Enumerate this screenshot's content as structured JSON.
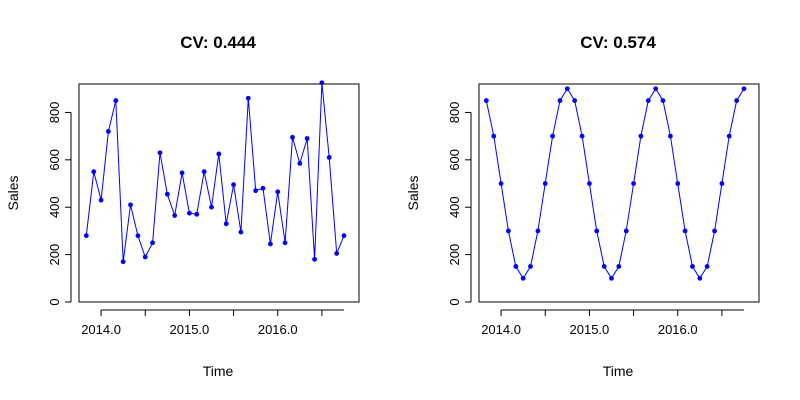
{
  "chart_data": [
    {
      "type": "line",
      "title": "CV: 0.444",
      "xlabel": "Time",
      "ylabel": "Sales",
      "xlim": [
        2013.75,
        2016.92
      ],
      "ylim": [
        0,
        920
      ],
      "xticks": [
        2014.0,
        2015.0,
        2016.0
      ],
      "xtick_labels": [
        "2014.0",
        "2015.0",
        "2016.0"
      ],
      "yticks": [
        0,
        200,
        400,
        600,
        800
      ],
      "ytick_labels": [
        "0",
        "200",
        "400",
        "600",
        "800"
      ],
      "grid": false,
      "color": "#0000ff",
      "series": [
        {
          "x": [
            2013.833,
            2013.917,
            2014.0,
            2014.083,
            2014.167,
            2014.25,
            2014.333,
            2014.417,
            2014.5,
            2014.583,
            2014.667,
            2014.75,
            2014.833,
            2014.917,
            2015.0,
            2015.083,
            2015.167,
            2015.25,
            2015.333,
            2015.417,
            2015.5,
            2015.583,
            2015.667,
            2015.75,
            2015.833,
            2015.917,
            2016.0,
            2016.083,
            2016.167,
            2016.25,
            2016.333,
            2016.417,
            2016.5,
            2016.583,
            2016.667,
            2016.75
          ],
          "values": [
            280,
            550,
            430,
            720,
            850,
            170,
            410,
            280,
            190,
            250,
            630,
            455,
            365,
            545,
            375,
            370,
            550,
            400,
            625,
            330,
            495,
            295,
            860,
            470,
            480,
            245,
            465,
            250,
            695,
            585,
            690,
            180,
            925,
            610,
            205,
            280
          ]
        }
      ]
    },
    {
      "type": "line",
      "title": "CV: 0.574",
      "xlabel": "Time",
      "ylabel": "Sales",
      "xlim": [
        2013.75,
        2016.92
      ],
      "ylim": [
        0,
        920
      ],
      "xticks": [
        2014.0,
        2015.0,
        2016.0
      ],
      "xtick_labels": [
        "2014.0",
        "2015.0",
        "2016.0"
      ],
      "yticks": [
        0,
        200,
        400,
        600,
        800
      ],
      "ytick_labels": [
        "0",
        "200",
        "400",
        "600",
        "800"
      ],
      "grid": false,
      "color": "#0000ff",
      "series": [
        {
          "x": [
            2013.833,
            2013.917,
            2014.0,
            2014.083,
            2014.167,
            2014.25,
            2014.333,
            2014.417,
            2014.5,
            2014.583,
            2014.667,
            2014.75,
            2014.833,
            2014.917,
            2015.0,
            2015.083,
            2015.167,
            2015.25,
            2015.333,
            2015.417,
            2015.5,
            2015.583,
            2015.667,
            2015.75,
            2015.833,
            2015.917,
            2016.0,
            2016.083,
            2016.167,
            2016.25,
            2016.333,
            2016.417,
            2016.5,
            2016.583,
            2016.667,
            2016.75
          ],
          "values": [
            850,
            700,
            500,
            300,
            150,
            100,
            150,
            300,
            500,
            700,
            850,
            900,
            850,
            700,
            500,
            300,
            150,
            100,
            150,
            300,
            500,
            700,
            850,
            900,
            850,
            700,
            500,
            300,
            150,
            100,
            150,
            300,
            500,
            700,
            850,
            900
          ]
        }
      ]
    }
  ]
}
